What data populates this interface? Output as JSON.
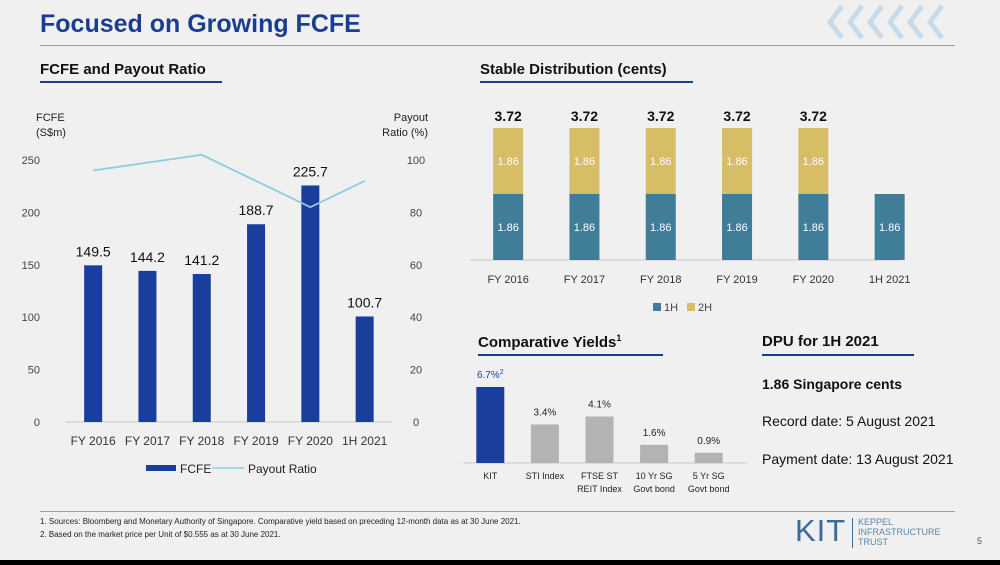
{
  "title": "Focused on Growing FCFE",
  "slide_number": "5",
  "colors": {
    "fcfe": "#1a3e9e",
    "payout": "#8ccde0",
    "h1": "#3f7d99",
    "h2": "#d6bd66",
    "kit": "#1a3e9e",
    "grey": "#b3b3b3",
    "title": "#1a3e8f"
  },
  "decor": {
    "chevrons": "chevron-pattern"
  },
  "fcfe_section": {
    "heading": "FCFE and Payout Ratio"
  },
  "stable_section": {
    "heading": "Stable Distribution (cents)"
  },
  "yields_section": {
    "heading": "Comparative Yields",
    "heading_sup": "1"
  },
  "dpu_section": {
    "heading": "DPU for 1H 2021",
    "amount": "1.86 Singapore cents",
    "record_date": "Record date: 5 August 2021",
    "payment_date": "Payment date: 13 August 2021"
  },
  "footnotes": [
    "1. Sources: Bloomberg and Monetary Authority of Singapore. Comparative yield based on preceding 12-month data as at 30 June 2021.",
    "2. Based on the market price per Unit of $0.555 as at 30 June 2021."
  ],
  "logo": {
    "mark": "KIT",
    "text": [
      "KEPPEL",
      "INFRASTRUCTURE",
      "TRUST"
    ]
  },
  "chart_data": [
    {
      "type": "bar",
      "ylabel_left": [
        "FCFE",
        "(S$m)"
      ],
      "ylabel_right": [
        "Payout",
        "Ratio (%)"
      ],
      "categories": [
        "FY 2016",
        "FY 2017",
        "FY 2018",
        "FY 2019",
        "FY 2020",
        "1H 2021"
      ],
      "ylim": [
        0,
        250
      ],
      "yticks": [
        0,
        50,
        100,
        150,
        200,
        250
      ],
      "y2lim": [
        0,
        100
      ],
      "y2ticks": [
        0,
        20,
        40,
        60,
        80,
        100
      ],
      "series": [
        {
          "name": "FCFE",
          "type": "bar",
          "axis": "left",
          "values": [
            149.5,
            144.2,
            141.2,
            188.7,
            225.7,
            100.7
          ],
          "labels": [
            "149.5",
            "144.2",
            "141.2",
            "188.7",
            "225.7",
            "100.7"
          ]
        },
        {
          "name": "Payout Ratio",
          "type": "line",
          "axis": "right",
          "values": [
            96,
            99,
            102,
            92,
            82,
            92
          ]
        }
      ],
      "legend_position": "bottom"
    },
    {
      "type": "bar",
      "stacked": true,
      "categories": [
        "FY 2016",
        "FY 2017",
        "FY 2018",
        "FY 2019",
        "FY 2020",
        "1H 2021"
      ],
      "ylim": [
        0,
        3.72
      ],
      "series": [
        {
          "name": "1H",
          "values": [
            1.86,
            1.86,
            1.86,
            1.86,
            1.86,
            1.86
          ],
          "labels": [
            "1.86",
            "1.86",
            "1.86",
            "1.86",
            "1.86",
            "1.86"
          ]
        },
        {
          "name": "2H",
          "values": [
            1.86,
            1.86,
            1.86,
            1.86,
            1.86,
            null
          ],
          "labels": [
            "1.86",
            "1.86",
            "1.86",
            "1.86",
            "1.86",
            ""
          ]
        }
      ],
      "totals": [
        "3.72",
        "3.72",
        "3.72",
        "3.72",
        "3.72",
        ""
      ],
      "legend_position": "bottom"
    },
    {
      "type": "bar",
      "categories": [
        [
          "KIT"
        ],
        [
          "STI Index"
        ],
        [
          "FTSE ST",
          "REIT Index"
        ],
        [
          "10 Yr SG",
          "Govt bond"
        ],
        [
          "5 Yr SG",
          "Govt bond"
        ]
      ],
      "values": [
        6.7,
        3.4,
        4.1,
        1.6,
        0.9
      ],
      "labels": [
        "6.7%",
        "3.4%",
        "4.1%",
        "1.6%",
        "0.9%"
      ],
      "label_sups": [
        "2",
        "",
        "",
        "",
        ""
      ],
      "unit": "%"
    }
  ]
}
